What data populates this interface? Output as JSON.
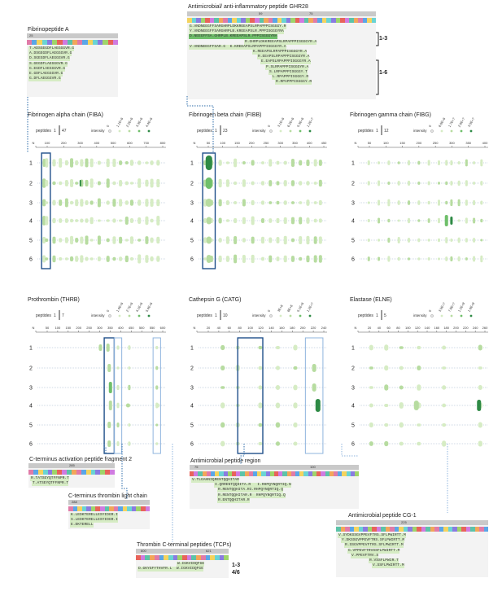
{
  "colors": {
    "light": "#d6ecc4",
    "mid": "#b7dca0",
    "dark": "#6fbf6a",
    "darker": "#2e8a45",
    "outline_dark": "#1f4f8a",
    "outline_light": "#8fb4de",
    "dotted": "#2a6aa8",
    "rowline": "#9fb3c9"
  },
  "top": {
    "fibrinopeptide_a": {
      "title": "Fibrinopeptide A",
      "num": "25",
      "peptides": [
        "T.ADSGEGDFLAEGGGVR.G",
        "A.DSGEGDFLAEGGGVR.G",
        "D.SGEGDFLAEGGGVR.G",
        "S.GEGDFLAEGGGVR.G",
        "G.EGDFLAEGGGVR.G",
        "E.GDFLAEGGGVR.G",
        "G.DFLAEGGGVR.G"
      ]
    },
    "ghr28": {
      "title": "Antimicrobial/ anti-inflammatory peptide GHR28",
      "num1": "59",
      "num2": "75",
      "peptides": [
        "G.VNDNEEGFFSARGHRPLDKKREEAPSLRPAPPPISGGGY.R",
        "Y.VNDNEEGFFSARGHRPLB.KREEAPSLR.PPPISGGGYRA",
        "D.NEEGFFSA.GHRPLB.KREEAPSLR.PPPISGGGYRA",
        "R.GHRPLDKKREEAPSLRPAPPPISGGGYR.A",
        "V.VNDNEEGFFSAR.G  K.KREEAPSLRPAPPPISGGGYR.A",
        "K.REEAPSLRPAPPPISGGGYR.A",
        "R.EEAPSLRPAPPPISGGGYR.A",
        "E.EAPSLRPAPPPISGGGYR.A",
        "P.SLRPAPPPISGGGYR.A",
        "S.LRPAPPPISGGGY.T",
        "L.RPAPPPISGGGY.R",
        "R.RPAPPPISGGGY.R"
      ],
      "group1": "1-3",
      "group2": "1-6"
    }
  },
  "lanes": [
    "1",
    "2",
    "3",
    "4",
    "5",
    "6"
  ],
  "panels": [
    {
      "title": "Fibrinogen alpha chain (FIBA)",
      "peptides_label": "peptides",
      "p_min": "1",
      "p_max": "47",
      "intensity_label": "intensity",
      "legend": [
        "0",
        "1.1E+6",
        "2.2E+6",
        "3.3E+6",
        "4.4E+6"
      ],
      "ticks": [
        "N",
        "100",
        "200",
        "300",
        "400",
        "500",
        "600",
        "700",
        "800"
      ]
    },
    {
      "title": "Fibrinogen beta chain (FIBB)",
      "peptides_label": "peptides",
      "p_min": "1",
      "p_max": "23",
      "intensity_label": "intensity",
      "legend": [
        "0",
        "3.1E+6",
        "6.2E+6",
        "9.3E+6",
        "1.2E+7"
      ],
      "ticks": [
        "N",
        "50",
        "100",
        "150",
        "200",
        "250",
        "300",
        "350",
        "400",
        "450"
      ]
    },
    {
      "title": "Fibrinogen gamma chain (FIBG)",
      "peptides_label": "peptides",
      "p_min": "1",
      "p_max": "12",
      "intensity_label": "intensity",
      "legend": [
        "0",
        "8.6E+6",
        "1.7E+7",
        "2.6E+7",
        "3.5E+7"
      ],
      "ticks": [
        "N",
        "50",
        "100",
        "150",
        "200",
        "250",
        "300",
        "350",
        "400"
      ]
    },
    {
      "title": "Prothrombin (THRB)",
      "peptides_label": "peptides",
      "p_min": "1",
      "p_max": "7",
      "intensity_label": "intensity",
      "legend": [
        "0",
        "1.4E+6",
        "2.7E+6",
        "4.1E+6",
        "5.4E+6"
      ],
      "ticks": [
        "N",
        "50",
        "100",
        "150",
        "200",
        "250",
        "300",
        "350",
        "400",
        "450",
        "500",
        "550",
        "600"
      ]
    },
    {
      "title": "Cathepsin G (CATG)",
      "peptides_label": "peptides",
      "p_min": "1",
      "p_max": "10",
      "intensity_label": "intensity",
      "legend": [
        "0",
        "3E+6",
        "6E+6",
        "9.1E+6",
        "1.2E+7"
      ],
      "ticks": [
        "N",
        "20",
        "40",
        "60",
        "80",
        "100",
        "120",
        "140",
        "160",
        "180",
        "200",
        "220",
        "240"
      ]
    },
    {
      "title": "Elastase (ELNE)",
      "peptides_label": "peptides",
      "p_min": "1",
      "p_max": "5",
      "intensity_label": "intensity",
      "legend": [
        "0",
        "3.9E+7",
        "7.8E+7",
        "1.2E+8",
        "1.6E+8"
      ],
      "ticks": [
        "N",
        "20",
        "40",
        "60",
        "80",
        "100",
        "120",
        "140",
        "160",
        "180",
        "200",
        "220",
        "240",
        "260"
      ]
    }
  ],
  "bottom": {
    "ctap2": {
      "title": "C-terminus activation peptide fragment 2",
      "num": "285",
      "peptides": [
        "R.TATSEYQTFFNPR.T",
        "T.ATSEYQTFFNPR.T"
      ]
    },
    "ctlc": {
      "title": "C-terminus thrombin light chain",
      "num": "288",
      "peptides": [
        "K.LEDKTERELLESYIDGR.I",
        "S.LEDKTERELLESYIDGR.I",
        "E.DKTERELL"
      ]
    },
    "tcp": {
      "title": "Thrombin C-terminal peptides (TCPs)",
      "num1": "600",
      "num2": "621",
      "peptides": [
        "W.IGKVIDQFGE",
        "D.GKYGFYTHVFR.L  W.IGKVIDQFGE"
      ],
      "group1": "1-3",
      "group2": "4/6"
    },
    "amp": {
      "title": "Antimicrobial peptide region",
      "num1": "75",
      "num2": "100",
      "peptides": [
        "V.TLGAHNIQRENTQQHITAR",
        "I.QRRENTQQHITA.R   I.RHPQYNQRTIQ.N",
        "R.RENTQQHITA.RI.RHPQYNQRTIQ.Q",
        "R.RENTQQHITAR.R  RHPQYNQRTIQ.Q",
        "R.ENTQQHITAR.R"
      ]
    },
    "cg1": {
      "title": "Antimicrobial peptide CG-1",
      "num": "225",
      "peptides": [
        "V.SYDKSSGVPPEVFTRS.SFLPWIRTT.M",
        "Y.DKSSGVPPEVFTRS.SFLPWIRTT.M",
        "R.SSGVPPEVFTRS.SFLPWIRTT.M",
        "G.VPPEVFTRVSSFLPWIRTT.M",
        "V.PPEVFTRV.S",
        "R.VSSFLPWIR.T",
        "V.SSFLPWIRTT.M"
      ]
    }
  }
}
